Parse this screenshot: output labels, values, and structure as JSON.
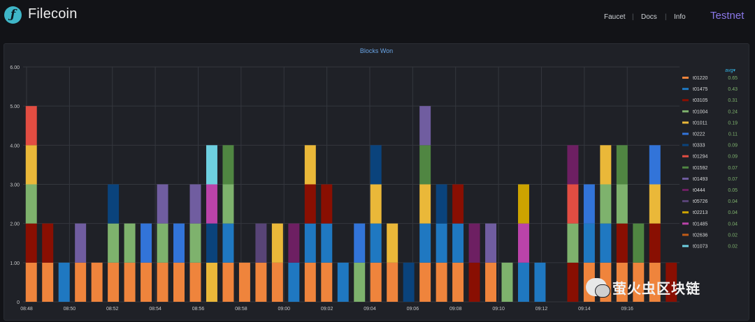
{
  "header": {
    "brand": "Filecoin",
    "nav": [
      "Faucet",
      "Docs",
      "Info"
    ],
    "network": "Testnet"
  },
  "panel": {
    "title": "Blocks Won"
  },
  "legend": {
    "stat_header": "avg▾"
  },
  "watermark": {
    "text": "萤火虫区块链"
  },
  "colors": {
    "t01220": "#ef843c",
    "t01475": "#1f78c1",
    "t03105": "#890f02",
    "t01004": "#7eb26d",
    "t01011": "#eab839",
    "t0222": "#3274d9",
    "t0333": "#0a437c",
    "t01294": "#e24d42",
    "t01592": "#508642",
    "t01493": "#705da0",
    "t0444": "#6d1f62",
    "t05726": "#584477",
    "t02213": "#cca300",
    "t01485": "#ba43a9",
    "t02636": "#c15c17",
    "t01073": "#6ed0e0"
  },
  "chart_data": {
    "type": "bar",
    "stacked": true,
    "title": "Blocks Won",
    "xlabel": "",
    "ylabel": "",
    "ylim": [
      0,
      6
    ],
    "grid": true,
    "legend_position": "right",
    "y_ticks": [
      "0",
      "1.00",
      "2.00",
      "3.00",
      "4.00",
      "5.00",
      "6.00"
    ],
    "x_ticks": [
      "08:48",
      "08:50",
      "08:52",
      "08:54",
      "08:56",
      "08:58",
      "09:00",
      "09:02",
      "09:04",
      "09:06",
      "09:08",
      "09:10",
      "09:12",
      "09:14",
      "09:16"
    ],
    "legend": [
      {
        "name": "t01220",
        "avg": "0.65"
      },
      {
        "name": "t01475",
        "avg": "0.43"
      },
      {
        "name": "t03105",
        "avg": "0.31"
      },
      {
        "name": "t01004",
        "avg": "0.24"
      },
      {
        "name": "t01011",
        "avg": "0.19"
      },
      {
        "name": "t0222",
        "avg": "0.11"
      },
      {
        "name": "t0333",
        "avg": "0.09"
      },
      {
        "name": "t01294",
        "avg": "0.09"
      },
      {
        "name": "t01592",
        "avg": "0.07"
      },
      {
        "name": "t01493",
        "avg": "0.07"
      },
      {
        "name": "t0444",
        "avg": "0.05"
      },
      {
        "name": "t05726",
        "avg": "0.04"
      },
      {
        "name": "t02213",
        "avg": "0.04"
      },
      {
        "name": "t01485",
        "avg": "0.04"
      },
      {
        "name": "t02636",
        "avg": "0.02"
      },
      {
        "name": "t01073",
        "avg": "0.02"
      }
    ],
    "bars": [
      [
        "t01220",
        "t03105",
        "t01004",
        "t01011",
        "t01294"
      ],
      [
        "t01220",
        "t03105"
      ],
      [
        "t01475"
      ],
      [
        "t01220",
        "t01493"
      ],
      [
        "t01220"
      ],
      [
        "t01220",
        "t01004",
        "t0333"
      ],
      [
        "t01220",
        "t01004"
      ],
      [
        "t01220",
        "t0222"
      ],
      [
        "t01220",
        "t01004",
        "t01493"
      ],
      [
        "t01220",
        "t0222"
      ],
      [
        "t01220",
        "t01004",
        "t01493"
      ],
      [
        "t01011",
        "t0333",
        "t01485",
        "t01073"
      ],
      [
        "t01220",
        "t01475",
        "t01004",
        "t01592"
      ],
      [
        "t01220"
      ],
      [
        "t01220",
        "t05726"
      ],
      [
        "t01220",
        "t01011"
      ],
      [
        "t01475",
        "t0444"
      ],
      [
        "t01220",
        "t01475",
        "t03105",
        "t01011"
      ],
      [
        "t01220",
        "t01475",
        "t03105"
      ],
      [
        "t01475"
      ],
      [
        "t01004",
        "t0222"
      ],
      [
        "t01220",
        "t01475",
        "t01011",
        "t0333"
      ],
      [
        "t01220",
        "t01011"
      ],
      [
        "t0333"
      ],
      [
        "t01220",
        "t01475",
        "t01011",
        "t01592",
        "t01493"
      ],
      [
        "t01220",
        "t01475",
        "t0333"
      ],
      [
        "t01220",
        "t01475",
        "t03105"
      ],
      [
        "t03105",
        "t0444"
      ],
      [
        "t01220",
        "t01493"
      ],
      [
        "t01004"
      ],
      [
        "t01475",
        "t01485",
        "t02213"
      ],
      [
        "t01475"
      ],
      [],
      [
        "t03105",
        "t01004",
        "t01294",
        "t0444"
      ],
      [
        "t01220",
        "t01475",
        "t0222"
      ],
      [
        "t01220",
        "t01475",
        "t01004",
        "t01011"
      ],
      [
        "t01220",
        "t03105",
        "t01004",
        "t01592"
      ],
      [
        "t01220",
        "t01592"
      ],
      [
        "t01220",
        "t03105",
        "t01011",
        "t0222"
      ],
      [
        "t03105"
      ]
    ]
  }
}
